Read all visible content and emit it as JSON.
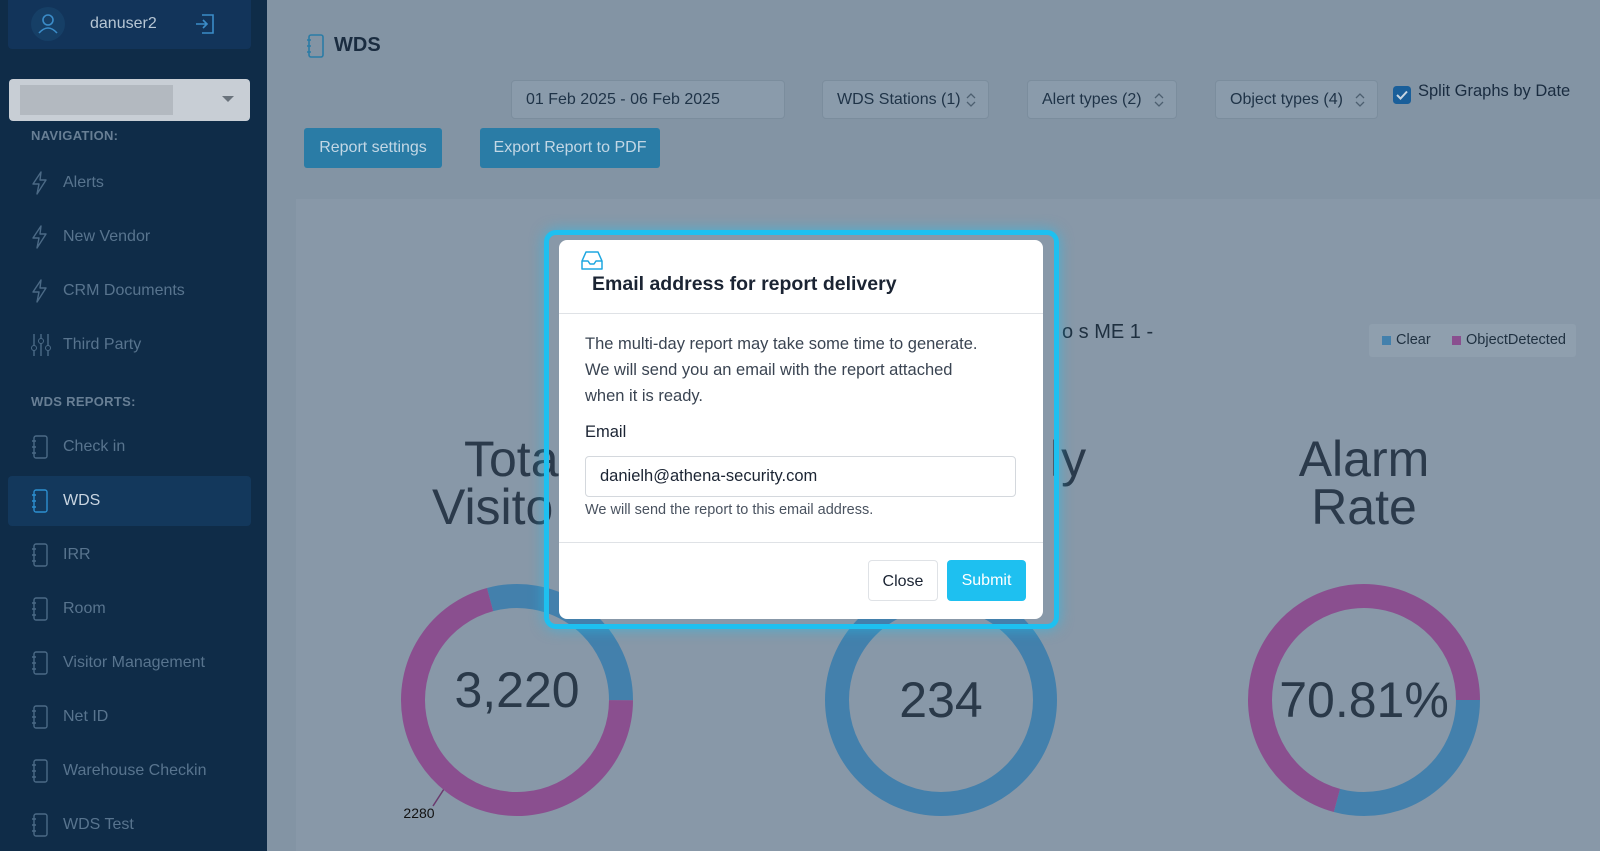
{
  "sidebar": {
    "username": "danuser2",
    "nav_header": "NAVIGATION:",
    "nav_items": [
      "Alerts",
      "New Vendor",
      "CRM Documents",
      "Third Party"
    ],
    "reports_header": "WDS REPORTS:",
    "report_items": [
      "Check in",
      "WDS",
      "IRR",
      "Room",
      "Visitor Management",
      "Net ID",
      "Warehouse Checkin",
      "WDS Test"
    ]
  },
  "page": {
    "title": "WDS",
    "date_range": "01 Feb 2025 - 06 Feb 2025",
    "filters": [
      "WDS Stations (1)",
      "Alert types (2)",
      "Object types (4)"
    ],
    "split_by_date": {
      "label": "Split Graphs by Date",
      "checked": true
    },
    "buttons": [
      "Report settings",
      "Export Report to PDF"
    ]
  },
  "chart": {
    "title_fragment": "o s ME 1 -",
    "legend": [
      {
        "name": "Clear",
        "color": "#4380ac"
      },
      {
        "name": "ObjectDetected",
        "color": "#8a4f8f"
      }
    ],
    "donuts": [
      {
        "title_lines": [
          "Tota",
          "Visito"
        ],
        "center": "3,220",
        "values": [
          940,
          2280
        ],
        "value_labels": [
          null,
          "2280"
        ]
      },
      {
        "title_lines": [
          "ly"
        ],
        "center": "234",
        "values": [
          234
        ]
      },
      {
        "title_lines": [
          "Alarm",
          "Rate"
        ],
        "center": "70.81%",
        "values": [
          29.19,
          70.81
        ]
      }
    ]
  },
  "modal": {
    "title": "Email address for report delivery",
    "message_lines": [
      "The multi-day report may take some time to generate.",
      "We will send you an email with the report attached",
      "when it is ready."
    ],
    "email_label": "Email",
    "email_value": "danielh@athena-security.com",
    "email_help": "We will send the report to this email address.",
    "close": "Close",
    "submit": "Submit"
  }
}
